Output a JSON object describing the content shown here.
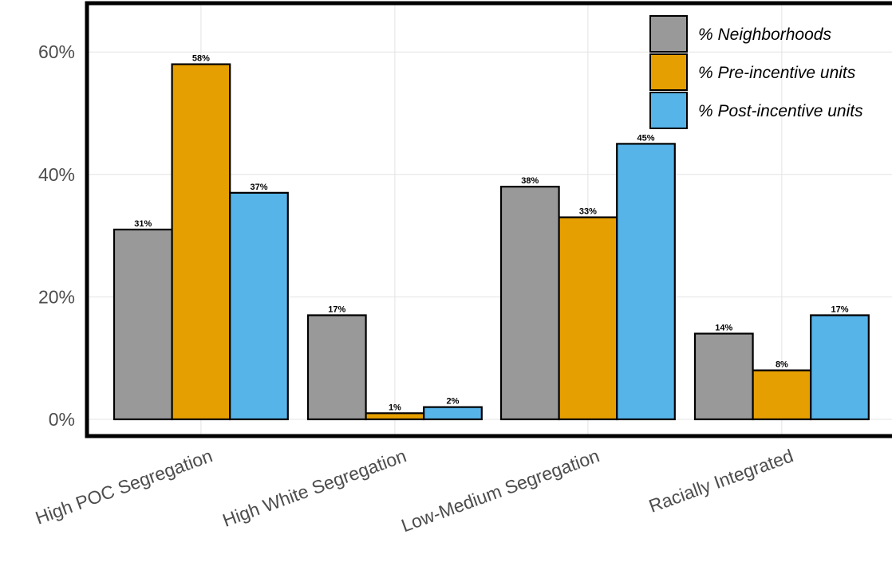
{
  "chart_data": {
    "type": "bar",
    "categories": [
      "High POC Segregation",
      "High White Segregation",
      "Low-Medium Segregation",
      "Racially Integrated"
    ],
    "series": [
      {
        "name": "% Neighborhoods",
        "values": [
          31,
          17,
          38,
          14
        ],
        "color": "#999999"
      },
      {
        "name": "% Pre-incentive units",
        "values": [
          58,
          1,
          33,
          8
        ],
        "color": "#E69F00"
      },
      {
        "name": "% Post-incentive units",
        "values": [
          37,
          2,
          45,
          17
        ],
        "color": "#56B4E9"
      }
    ],
    "data_labels": [
      [
        "31%",
        "58%",
        "37%"
      ],
      [
        "17%",
        "1%",
        "2%"
      ],
      [
        "38%",
        "33%",
        "45%"
      ],
      [
        "14%",
        "8%",
        "17%"
      ]
    ],
    "ytick_labels": [
      "0%",
      "20%",
      "40%",
      "60%"
    ],
    "yticks": [
      0,
      20,
      40,
      60
    ],
    "ylim": [
      0,
      62
    ],
    "title": "",
    "xlabel": "",
    "ylabel": "",
    "grid": true,
    "legend_position": "top-right"
  }
}
